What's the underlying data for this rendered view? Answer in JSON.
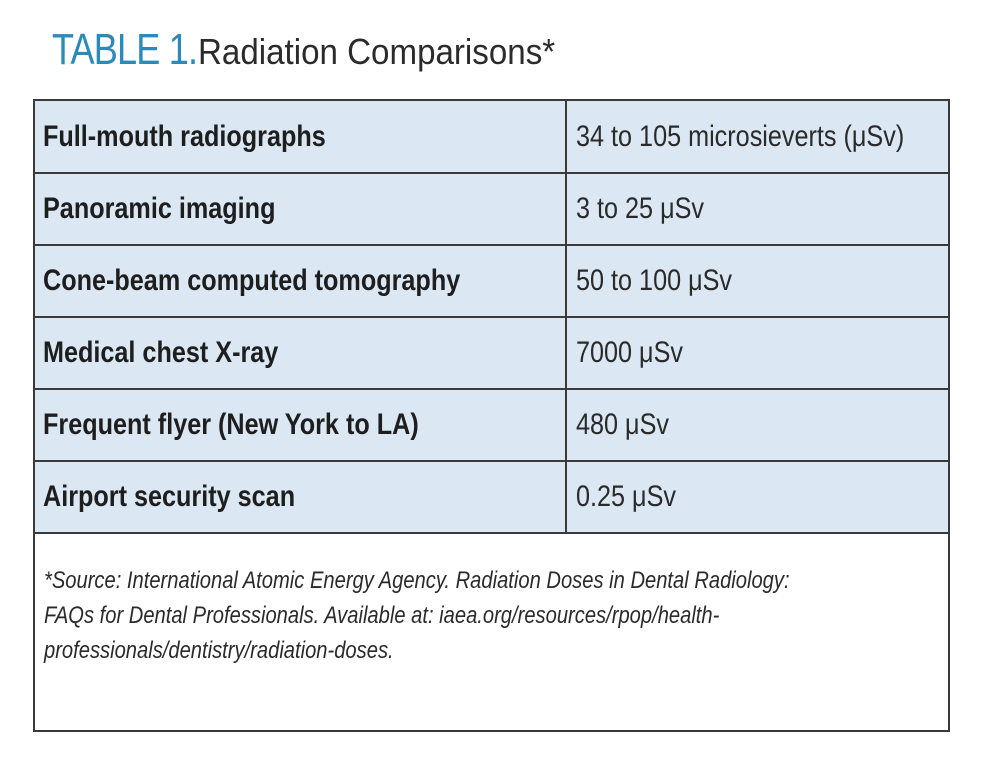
{
  "title": {
    "number": "TABLE 1.",
    "text": "Radiation Comparisons*"
  },
  "rows": [
    {
      "label": "Full-mouth radiographs",
      "value": "34 to 105 microsieverts (μSv)"
    },
    {
      "label": "Panoramic imaging",
      "value": "3 to 25 μSv"
    },
    {
      "label": "Cone-beam computed tomography",
      "value": "50 to 100 μSv"
    },
    {
      "label": "Medical chest X-ray",
      "value": "7000 μSv"
    },
    {
      "label": "Frequent flyer (New York to LA)",
      "value": "480 μSv"
    },
    {
      "label": "Airport security scan",
      "value": "0.25 μSv"
    }
  ],
  "footnote": {
    "lines": [
      "*Source: International Atomic Energy Agency. Radiation Doses in Dental Radiology:",
      "FAQs for Dental Professionals. Available at: iaea.org/resources/rpop/health-",
      "professionals/dentistry/radiation-doses."
    ]
  },
  "colors": {
    "title_accent": "#2a8bb8",
    "row_background": "#dbe8f3",
    "border": "#3a3a3a"
  }
}
